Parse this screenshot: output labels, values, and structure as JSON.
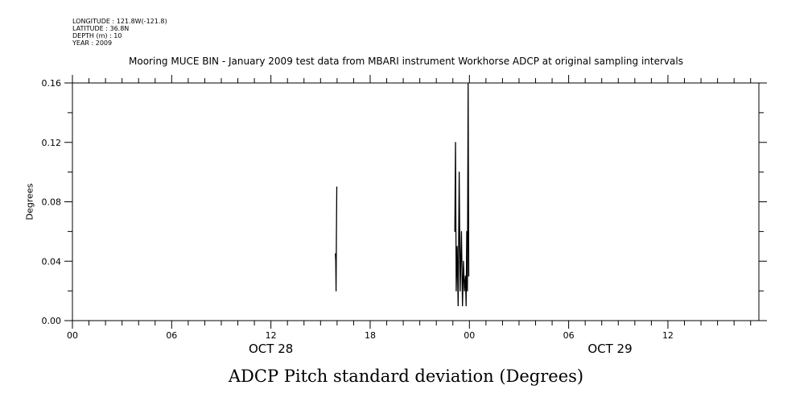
{
  "metadata": {
    "longitude": "LONGITUDE : 121.8W(-121.8)",
    "latitude": "LATITUDE : 36.8N",
    "depth": "DEPTH (m) : 10",
    "year": "YEAR : 2009"
  },
  "chart_data": {
    "type": "line",
    "title": "ADCP Pitch standard deviation (Degrees)",
    "subtitle": "Mooring MUCE BIN - January 2009 test data from MBARI instrument Workhorse ADCP at original sampling intervals",
    "ylabel": "Degrees",
    "xlabel": "",
    "xlim_hours": [
      0,
      41.5
    ],
    "ylim": [
      0,
      0.16
    ],
    "grid": false,
    "y_ticks": [
      "0.00",
      "0.04",
      "0.08",
      "0.12",
      "0.16"
    ],
    "x_ticks": [
      {
        "hour": 0,
        "label": "00"
      },
      {
        "hour": 6,
        "label": "06"
      },
      {
        "hour": 12,
        "label": "12"
      },
      {
        "hour": 18,
        "label": "18"
      },
      {
        "hour": 24,
        "label": "00"
      },
      {
        "hour": 30,
        "label": "06"
      },
      {
        "hour": 36,
        "label": "12"
      }
    ],
    "day_labels": [
      {
        "hour": 12,
        "label": "OCT 28"
      },
      {
        "hour": 32.5,
        "label": "OCT 29"
      }
    ],
    "series": [
      {
        "color": "#000000",
        "x_hours": [
          15.9,
          15.92,
          15.94,
          15.96,
          15.98,
          23.12,
          23.16,
          23.2,
          23.26,
          23.32,
          23.38,
          23.44,
          23.52,
          23.58,
          23.64,
          23.7,
          23.76,
          23.8,
          23.84,
          23.88,
          23.92,
          23.96
        ],
        "values": [
          0.045,
          0.04,
          0.02,
          0.055,
          0.09,
          0.06,
          0.12,
          0.02,
          0.05,
          0.01,
          0.1,
          0.02,
          0.06,
          0.01,
          0.04,
          0.02,
          0.03,
          0.01,
          0.06,
          0.02,
          0.16,
          0.03
        ]
      }
    ]
  }
}
